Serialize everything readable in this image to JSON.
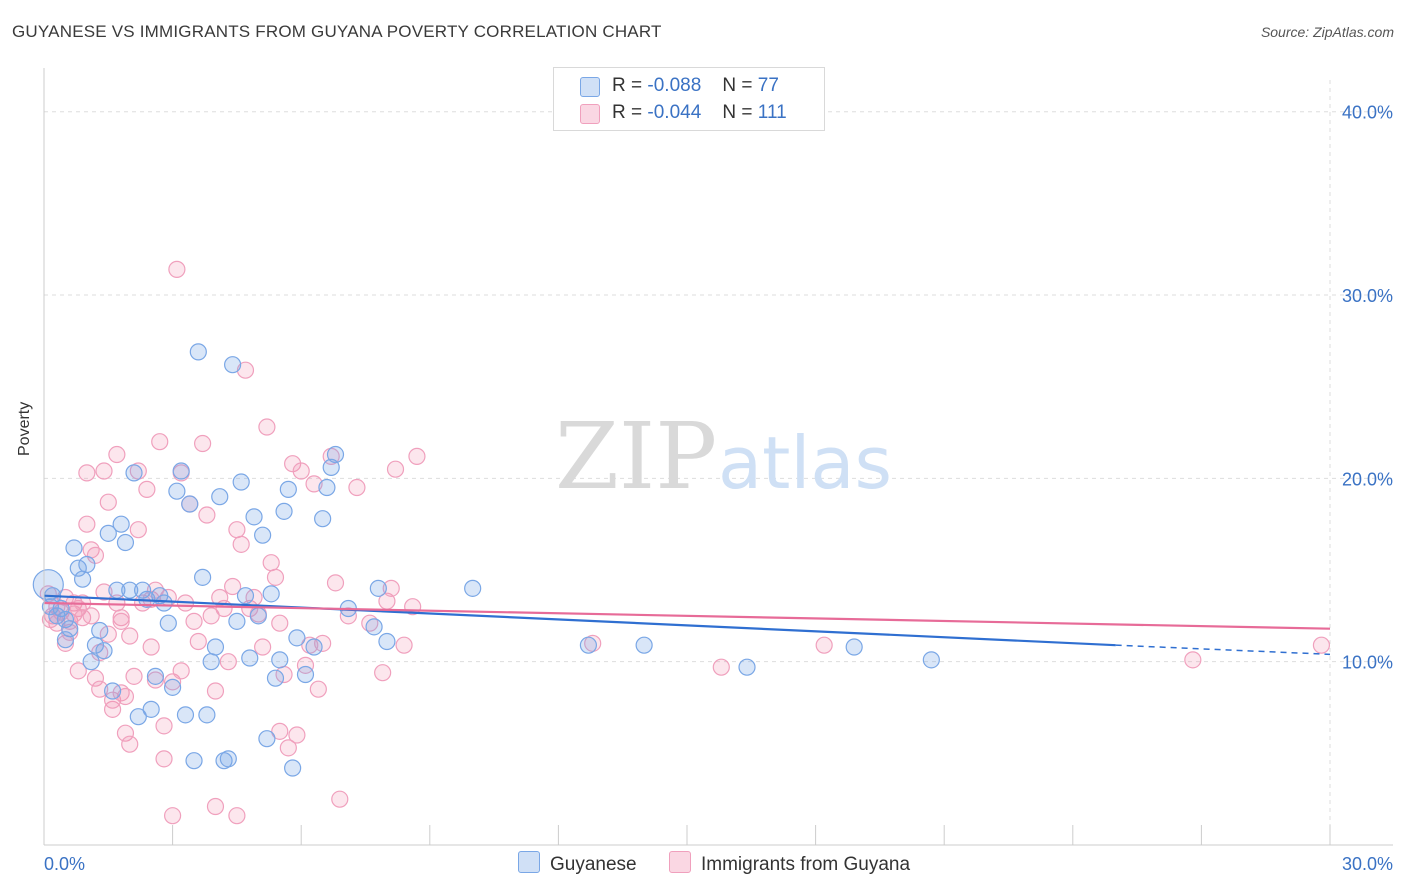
{
  "title": "GUYANESE VS IMMIGRANTS FROM GUYANA POVERTY CORRELATION CHART",
  "source": "Source: ZipAtlas.com",
  "watermark": {
    "zip": "ZIP",
    "atlas": "atlas"
  },
  "legend": {
    "rows": [
      {
        "r_label": "R =",
        "r_value": "-0.088",
        "n_label": "N =",
        "n_value": "77"
      },
      {
        "r_label": "R =",
        "r_value": "-0.044",
        "n_label": "N =",
        "n_value": "111"
      }
    ]
  },
  "bottom_legend": {
    "series1": "Guyanese",
    "series2": "Immigrants from Guyana"
  },
  "colors": {
    "blue_fill": "rgba(120,165,230,0.28)",
    "blue_stroke": "#7aa7e6",
    "blue_line": "#2f6fd1",
    "pink_fill": "rgba(240,140,175,0.22)",
    "pink_stroke": "#f0a0bd",
    "pink_line": "#e76b98",
    "axis_text": "#3a72c4",
    "grid": "#dddddd"
  },
  "chart_data": {
    "type": "scatter",
    "title": "GUYANESE VS IMMIGRANTS FROM GUYANA POVERTY CORRELATION CHART",
    "xlabel": "",
    "ylabel": "Poverty",
    "xlim": [
      0,
      30
    ],
    "ylim": [
      0,
      40
    ],
    "x_tick_labels": [
      "0.0%",
      "30.0%"
    ],
    "y_ticks": [
      10,
      20,
      30,
      40
    ],
    "y_tick_labels": [
      "10.0%",
      "20.0%",
      "30.0%",
      "40.0%"
    ],
    "grid": true,
    "series": [
      {
        "name": "Guyanese",
        "r": -0.088,
        "n": 77,
        "trend": {
          "x": [
            0,
            25.0
          ],
          "y": [
            13.6,
            10.9
          ],
          "dashed_to": [
            30,
            10.4
          ]
        },
        "points": [
          [
            0.1,
            14.2
          ],
          [
            0.2,
            13.6
          ],
          [
            0.3,
            12.5
          ],
          [
            0.4,
            12.9
          ],
          [
            0.5,
            11.2
          ],
          [
            0.5,
            12.3
          ],
          [
            0.6,
            11.8
          ],
          [
            0.7,
            16.2
          ],
          [
            0.8,
            15.1
          ],
          [
            0.9,
            14.5
          ],
          [
            1.0,
            15.3
          ],
          [
            1.1,
            10.0
          ],
          [
            1.2,
            10.9
          ],
          [
            1.3,
            11.7
          ],
          [
            1.4,
            10.6
          ],
          [
            1.5,
            17.0
          ],
          [
            1.6,
            8.4
          ],
          [
            1.7,
            13.9
          ],
          [
            1.8,
            17.5
          ],
          [
            1.9,
            16.5
          ],
          [
            2.0,
            13.9
          ],
          [
            2.1,
            20.3
          ],
          [
            2.2,
            7.0
          ],
          [
            2.3,
            13.9
          ],
          [
            2.4,
            13.4
          ],
          [
            2.5,
            7.4
          ],
          [
            2.6,
            9.2
          ],
          [
            2.7,
            13.6
          ],
          [
            2.8,
            13.2
          ],
          [
            2.9,
            12.1
          ],
          [
            3.0,
            8.6
          ],
          [
            3.1,
            19.3
          ],
          [
            3.2,
            20.4
          ],
          [
            3.3,
            7.1
          ],
          [
            3.4,
            18.6
          ],
          [
            3.5,
            4.6
          ],
          [
            3.6,
            26.9
          ],
          [
            3.7,
            14.6
          ],
          [
            3.8,
            7.1
          ],
          [
            3.9,
            10.0
          ],
          [
            4.0,
            10.8
          ],
          [
            4.1,
            19.0
          ],
          [
            4.2,
            4.6
          ],
          [
            4.3,
            4.7
          ],
          [
            4.4,
            26.2
          ],
          [
            4.5,
            12.2
          ],
          [
            4.6,
            19.8
          ],
          [
            4.7,
            13.6
          ],
          [
            4.8,
            10.2
          ],
          [
            4.9,
            17.9
          ],
          [
            5.0,
            12.5
          ],
          [
            5.1,
            16.9
          ],
          [
            5.2,
            5.8
          ],
          [
            5.3,
            13.7
          ],
          [
            5.4,
            9.1
          ],
          [
            5.5,
            10.1
          ],
          [
            5.6,
            18.2
          ],
          [
            5.7,
            19.4
          ],
          [
            5.8,
            4.2
          ],
          [
            5.9,
            11.3
          ],
          [
            6.1,
            9.3
          ],
          [
            6.3,
            10.8
          ],
          [
            6.5,
            17.8
          ],
          [
            6.6,
            19.5
          ],
          [
            6.7,
            20.6
          ],
          [
            6.8,
            21.3
          ],
          [
            7.1,
            12.9
          ],
          [
            7.7,
            11.9
          ],
          [
            7.8,
            14.0
          ],
          [
            8.0,
            11.1
          ],
          [
            10.0,
            14.0
          ],
          [
            12.7,
            10.9
          ],
          [
            14.0,
            10.9
          ],
          [
            16.4,
            9.7
          ],
          [
            18.9,
            10.8
          ],
          [
            20.7,
            10.1
          ],
          [
            0.15,
            13.0
          ]
        ]
      },
      {
        "name": "Immigrants from Guyana",
        "r": -0.044,
        "n": 111,
        "trend": {
          "x": [
            0,
            30
          ],
          "y": [
            13.2,
            11.8
          ]
        },
        "points": [
          [
            0.1,
            13.7
          ],
          [
            0.2,
            12.5
          ],
          [
            0.3,
            12.1
          ],
          [
            0.3,
            13.0
          ],
          [
            0.4,
            12.7
          ],
          [
            0.5,
            11.0
          ],
          [
            0.5,
            13.5
          ],
          [
            0.6,
            12.2
          ],
          [
            0.6,
            11.6
          ],
          [
            0.7,
            13.2
          ],
          [
            0.7,
            12.6
          ],
          [
            0.8,
            12.9
          ],
          [
            0.8,
            9.5
          ],
          [
            0.9,
            12.4
          ],
          [
            0.9,
            13.2
          ],
          [
            1.0,
            20.3
          ],
          [
            1.0,
            17.5
          ],
          [
            1.1,
            16.1
          ],
          [
            1.1,
            12.5
          ],
          [
            1.2,
            15.8
          ],
          [
            1.2,
            9.1
          ],
          [
            1.3,
            10.5
          ],
          [
            1.3,
            8.5
          ],
          [
            1.4,
            13.8
          ],
          [
            1.4,
            20.4
          ],
          [
            1.5,
            18.7
          ],
          [
            1.5,
            11.5
          ],
          [
            1.6,
            7.4
          ],
          [
            1.6,
            7.9
          ],
          [
            1.7,
            21.3
          ],
          [
            1.7,
            13.2
          ],
          [
            1.8,
            12.4
          ],
          [
            1.8,
            8.3
          ],
          [
            1.9,
            8.1
          ],
          [
            1.9,
            6.1
          ],
          [
            2.0,
            11.4
          ],
          [
            2.0,
            5.5
          ],
          [
            2.1,
            9.2
          ],
          [
            2.2,
            20.4
          ],
          [
            2.2,
            17.2
          ],
          [
            2.3,
            13.2
          ],
          [
            2.4,
            19.4
          ],
          [
            2.5,
            13.4
          ],
          [
            2.5,
            10.8
          ],
          [
            2.6,
            9.0
          ],
          [
            2.7,
            22.0
          ],
          [
            2.8,
            6.5
          ],
          [
            2.8,
            4.7
          ],
          [
            2.9,
            13.5
          ],
          [
            3.0,
            8.9
          ],
          [
            3.1,
            31.4
          ],
          [
            3.2,
            20.3
          ],
          [
            3.2,
            9.5
          ],
          [
            3.3,
            13.2
          ],
          [
            3.4,
            18.6
          ],
          [
            3.5,
            12.2
          ],
          [
            3.6,
            11.1
          ],
          [
            3.7,
            21.9
          ],
          [
            3.8,
            18.0
          ],
          [
            3.9,
            12.5
          ],
          [
            4.0,
            8.4
          ],
          [
            4.0,
            2.1
          ],
          [
            4.1,
            13.5
          ],
          [
            4.2,
            12.9
          ],
          [
            4.3,
            10.0
          ],
          [
            4.4,
            14.1
          ],
          [
            4.5,
            1.6
          ],
          [
            4.5,
            17.2
          ],
          [
            4.6,
            16.4
          ],
          [
            4.7,
            25.9
          ],
          [
            4.8,
            12.9
          ],
          [
            4.9,
            13.5
          ],
          [
            5.0,
            12.6
          ],
          [
            5.1,
            10.8
          ],
          [
            5.2,
            22.8
          ],
          [
            5.3,
            15.4
          ],
          [
            5.4,
            14.6
          ],
          [
            5.5,
            12.1
          ],
          [
            5.6,
            9.3
          ],
          [
            5.7,
            5.3
          ],
          [
            5.8,
            20.8
          ],
          [
            5.9,
            6.0
          ],
          [
            6.0,
            20.4
          ],
          [
            6.1,
            9.8
          ],
          [
            6.3,
            19.7
          ],
          [
            6.4,
            8.5
          ],
          [
            6.5,
            11.0
          ],
          [
            6.7,
            21.2
          ],
          [
            6.8,
            14.3
          ],
          [
            6.9,
            2.5
          ],
          [
            7.1,
            12.5
          ],
          [
            7.3,
            19.5
          ],
          [
            7.6,
            12.1
          ],
          [
            7.9,
            9.4
          ],
          [
            8.0,
            13.3
          ],
          [
            8.1,
            14.0
          ],
          [
            8.2,
            20.5
          ],
          [
            8.4,
            10.9
          ],
          [
            8.6,
            13.0
          ],
          [
            8.7,
            21.2
          ],
          [
            12.8,
            11.0
          ],
          [
            15.8,
            9.7
          ],
          [
            18.2,
            10.9
          ],
          [
            26.8,
            10.1
          ],
          [
            29.8,
            10.9
          ],
          [
            0.15,
            12.3
          ],
          [
            2.6,
            13.9
          ],
          [
            3.0,
            1.6
          ],
          [
            5.5,
            6.2
          ],
          [
            6.2,
            10.9
          ],
          [
            1.8,
            12.2
          ]
        ]
      }
    ]
  }
}
